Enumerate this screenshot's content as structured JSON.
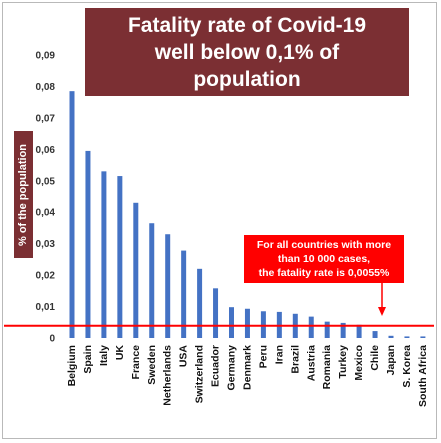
{
  "chart_data": {
    "type": "bar",
    "title_lines": [
      "Fatality rate of Covid-19",
      "well below 0,1% of",
      "population"
    ],
    "ylabel": "% of the population",
    "ylim": [
      0,
      0.09
    ],
    "y_ticks": [
      "0",
      "0,01",
      "0,02",
      "0,03",
      "0,04",
      "0,05",
      "0,06",
      "0,07",
      "0,08",
      "0,09"
    ],
    "grid": false,
    "categories": [
      "Belgium",
      "Spain",
      "Italy",
      "UK",
      "France",
      "Sweden",
      "Netherlands",
      "USA",
      "Switzerland",
      "Ecuador",
      "Germany",
      "Denmark",
      "Peru",
      "Iran",
      "Brazil",
      "Austria",
      "Romania",
      "Turkey",
      "Mexico",
      "Chile",
      "Japan",
      "S. Korea",
      "South Africa"
    ],
    "values": [
      0.0785,
      0.0595,
      0.053,
      0.0515,
      0.043,
      0.0365,
      0.033,
      0.0278,
      0.022,
      0.0158,
      0.0098,
      0.0093,
      0.0085,
      0.0083,
      0.0077,
      0.0068,
      0.0052,
      0.0048,
      0.0042,
      0.0022,
      0.0007,
      0.0005,
      0.0005
    ],
    "bar_color": "#4472c4",
    "reference_line": {
      "value": 0.0055,
      "color": "#ff0000"
    },
    "annotation": {
      "lines": [
        "For all countries with more",
        "than 10 000 cases,",
        "the fatality rate is 0,0055%"
      ],
      "background": "#ff0000"
    }
  },
  "colors": {
    "title_background": "#7b2f33",
    "arrow": "#ff0000"
  }
}
